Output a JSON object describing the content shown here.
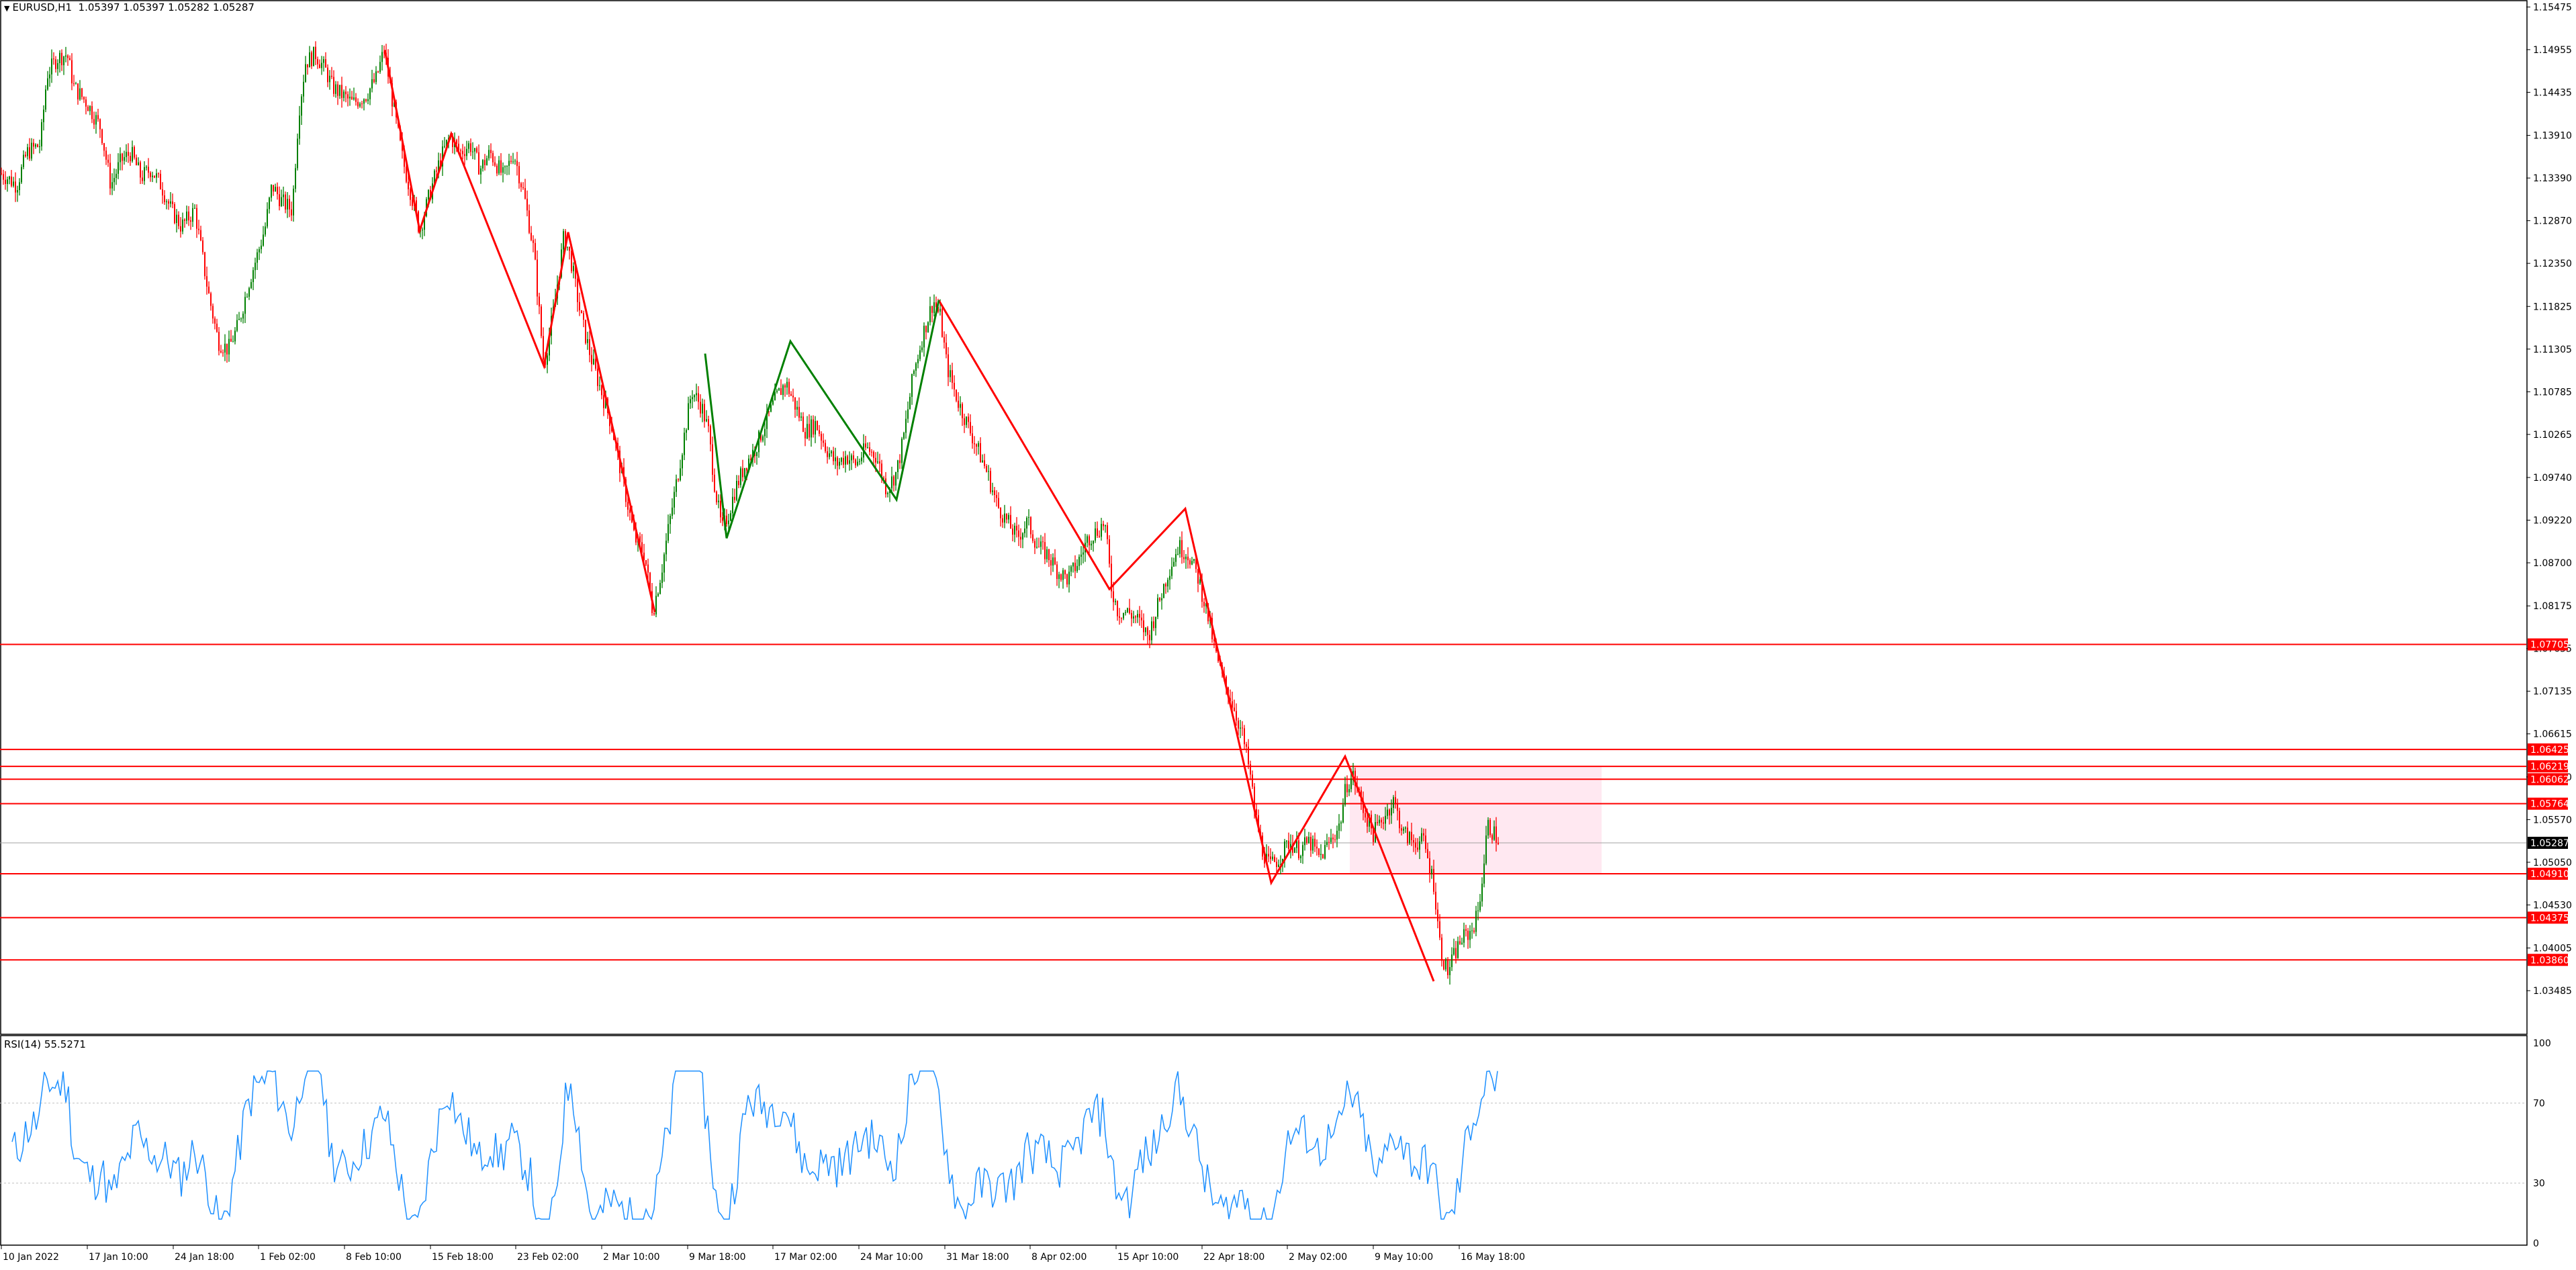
{
  "header": {
    "symbol": "EURUSD,H1",
    "ohlc": "1.05397 1.05397 1.05282 1.05287",
    "menu_icon": "triangle-down-icon"
  },
  "rsi": {
    "label": "RSI(14) 55.5271",
    "levels": [
      100,
      70,
      30,
      0
    ],
    "level_labels": [
      "100",
      "70",
      "30",
      "0"
    ],
    "color": "#1e90ff"
  },
  "colors": {
    "up_candle": "#008000",
    "down_candle": "#ff0000",
    "zigzag_red": "#ff0000",
    "zigzag_green": "#008000",
    "level_line": "#ff0000",
    "zone_fill": "#ffe4ee",
    "price_tag_bg": "#ff0000",
    "current_tag_bg": "#000000"
  },
  "chart_data": {
    "type": "candlestick",
    "symbol": "EURUSD",
    "timeframe": "H1",
    "ylim": [
      1.0324,
      1.1547
    ],
    "y_ticks": [
      "1.15475",
      "1.14955",
      "1.14435",
      "1.13910",
      "1.13390",
      "1.12870",
      "1.12350",
      "1.11825",
      "1.11305",
      "1.10785",
      "1.10265",
      "1.09740",
      "1.09220",
      "1.08700",
      "1.08175",
      "1.07655",
      "1.07135",
      "1.06615",
      "1.06090",
      "1.05570",
      "1.05050",
      "1.04530",
      "1.04005",
      "1.03485"
    ],
    "x_ticks": [
      "10 Jan 2022",
      "17 Jan 10:00",
      "24 Jan 18:00",
      "1 Feb 02:00",
      "8 Feb 10:00",
      "15 Feb 18:00",
      "23 Feb 02:00",
      "2 Mar 10:00",
      "9 Mar 18:00",
      "17 Mar 02:00",
      "24 Mar 10:00",
      "31 Mar 18:00",
      "8 Apr 02:00",
      "15 Apr 10:00",
      "22 Apr 18:00",
      "2 May 02:00",
      "9 May 10:00",
      "16 May 18:00"
    ],
    "price_path": [
      [
        0,
        1.1345
      ],
      [
        10,
        1.134
      ],
      [
        25,
        1.133
      ],
      [
        40,
        1.137
      ],
      [
        60,
        1.138
      ],
      [
        70,
        1.1465
      ],
      [
        85,
        1.1485
      ],
      [
        100,
        1.149
      ],
      [
        110,
        1.145
      ],
      [
        130,
        1.143
      ],
      [
        150,
        1.14
      ],
      [
        165,
        1.133
      ],
      [
        180,
        1.136
      ],
      [
        195,
        1.137
      ],
      [
        210,
        1.134
      ],
      [
        225,
        1.135
      ],
      [
        240,
        1.133
      ],
      [
        255,
        1.13
      ],
      [
        270,
        1.128
      ],
      [
        290,
        1.13
      ],
      [
        310,
        1.12
      ],
      [
        325,
        1.114
      ],
      [
        340,
        1.113
      ],
      [
        355,
        1.116
      ],
      [
        370,
        1.121
      ],
      [
        385,
        1.125
      ],
      [
        395,
        1.128
      ],
      [
        405,
        1.133
      ],
      [
        420,
        1.131
      ],
      [
        435,
        1.13
      ],
      [
        445,
        1.142
      ],
      [
        455,
        1.148
      ],
      [
        470,
        1.149
      ],
      [
        485,
        1.147
      ],
      [
        495,
        1.145
      ],
      [
        510,
        1.144
      ],
      [
        525,
        1.143
      ],
      [
        545,
        1.144
      ],
      [
        560,
        1.146
      ],
      [
        572,
        1.1495
      ],
      [
        585,
        1.143
      ],
      [
        600,
        1.136
      ],
      [
        615,
        1.131
      ],
      [
        625,
        1.1275
      ],
      [
        640,
        1.132
      ],
      [
        655,
        1.136
      ],
      [
        670,
        1.139
      ],
      [
        685,
        1.137
      ],
      [
        700,
        1.138
      ],
      [
        715,
        1.135
      ],
      [
        730,
        1.137
      ],
      [
        750,
        1.134
      ],
      [
        765,
        1.137
      ],
      [
        780,
        1.132
      ],
      [
        795,
        1.125
      ],
      [
        810,
        1.111
      ],
      [
        825,
        1.118
      ],
      [
        840,
        1.127
      ],
      [
        850,
        1.124
      ],
      [
        865,
        1.117
      ],
      [
        880,
        1.112
      ],
      [
        895,
        1.108
      ],
      [
        910,
        1.104
      ],
      [
        925,
        1.098
      ],
      [
        945,
        1.09
      ],
      [
        960,
        1.088
      ],
      [
        972,
        1.081
      ],
      [
        985,
        1.086
      ],
      [
        995,
        1.091
      ],
      [
        1010,
        1.098
      ],
      [
        1020,
        1.103
      ],
      [
        1030,
        1.108
      ],
      [
        1045,
        1.106
      ],
      [
        1055,
        1.103
      ],
      [
        1065,
        1.096
      ],
      [
        1075,
        1.091
      ],
      [
        1085,
        1.093
      ],
      [
        1095,
        1.096
      ],
      [
        1110,
        1.099
      ],
      [
        1125,
        1.101
      ],
      [
        1140,
        1.104
      ],
      [
        1155,
        1.107
      ],
      [
        1170,
        1.109
      ],
      [
        1185,
        1.106
      ],
      [
        1200,
        1.103
      ],
      [
        1215,
        1.104
      ],
      [
        1230,
        1.101
      ],
      [
        1245,
        1.099
      ],
      [
        1260,
        1.1
      ],
      [
        1275,
        1.099
      ],
      [
        1290,
        1.101
      ],
      [
        1305,
        1.1
      ],
      [
        1320,
        1.096
      ],
      [
        1335,
        1.098
      ],
      [
        1345,
        1.102
      ],
      [
        1360,
        1.11
      ],
      [
        1375,
        1.115
      ],
      [
        1390,
        1.119
      ],
      [
        1400,
        1.117
      ],
      [
        1410,
        1.111
      ],
      [
        1425,
        1.107
      ],
      [
        1440,
        1.104
      ],
      [
        1455,
        1.101
      ],
      [
        1470,
        1.098
      ],
      [
        1485,
        1.094
      ],
      [
        1500,
        1.092
      ],
      [
        1515,
        1.09
      ],
      [
        1530,
        1.092
      ],
      [
        1545,
        1.089
      ],
      [
        1560,
        1.088
      ],
      [
        1575,
        1.086
      ],
      [
        1590,
        1.085
      ],
      [
        1605,
        1.087
      ],
      [
        1620,
        1.09
      ],
      [
        1635,
        1.091
      ],
      [
        1645,
        1.092
      ],
      [
        1655,
        1.084
      ],
      [
        1665,
        1.081
      ],
      [
        1680,
        1.081
      ],
      [
        1695,
        1.08
      ],
      [
        1710,
        1.078
      ],
      [
        1725,
        1.082
      ],
      [
        1740,
        1.086
      ],
      [
        1755,
        1.089
      ],
      [
        1770,
        1.088
      ],
      [
        1785,
        1.085
      ],
      [
        1800,
        1.08
      ],
      [
        1810,
        1.076
      ],
      [
        1820,
        1.073
      ],
      [
        1835,
        1.07
      ],
      [
        1850,
        1.066
      ],
      [
        1860,
        1.062
      ],
      [
        1870,
        1.056
      ],
      [
        1880,
        1.052
      ],
      [
        1890,
        1.05
      ],
      [
        1905,
        1.051
      ],
      [
        1920,
        1.053
      ],
      [
        1935,
        1.052
      ],
      [
        1950,
        1.053
      ],
      [
        1965,
        1.051
      ],
      [
        1980,
        1.053
      ],
      [
        1995,
        1.055
      ],
      [
        2005,
        1.06
      ],
      [
        2015,
        1.061
      ],
      [
        2030,
        1.057
      ],
      [
        2045,
        1.054
      ],
      [
        2060,
        1.056
      ],
      [
        2075,
        1.058
      ],
      [
        2090,
        1.054
      ],
      [
        2105,
        1.053
      ],
      [
        2120,
        1.053
      ],
      [
        2135,
        1.048
      ],
      [
        2145,
        1.04
      ],
      [
        2155,
        1.037
      ],
      [
        2165,
        1.039
      ],
      [
        2175,
        1.041
      ],
      [
        2190,
        1.042
      ],
      [
        2200,
        1.044
      ],
      [
        2208,
        1.049
      ],
      [
        2215,
        1.055
      ],
      [
        2225,
        1.054
      ],
      [
        2232,
        1.053
      ]
    ],
    "zigzag_red": [
      [
        [
          573,
          1.1495
        ],
        [
          625,
          1.1275
        ],
        [
          672,
          1.1393
        ],
        [
          810,
          1.111
        ],
        [
          846,
          1.1273
        ],
        [
          975,
          1.081
        ]
      ],
      [
        [
          1398,
          1.119
        ],
        [
          1652,
          1.0838
        ],
        [
          1765,
          1.0936
        ],
        [
          1893,
          1.048
        ],
        [
          2003,
          1.0634
        ],
        [
          2135,
          1.036
        ]
      ]
    ],
    "zigzag_green": [
      [
        [
          1082,
          1.09
        ],
        [
          1050,
          1.1125
        ],
        [
          1082,
          1.09
        ],
        [
          1177,
          1.114
        ],
        [
          1335,
          1.0947
        ],
        [
          1398,
          1.119
        ]
      ]
    ],
    "levels": [
      {
        "price": 1.07705,
        "label": "1.07705"
      },
      {
        "price": 1.06425,
        "label": "1.06425"
      },
      {
        "price": 1.06219,
        "label": "1.06219"
      },
      {
        "price": 1.06062,
        "label": "1.06062"
      },
      {
        "price": 1.05764,
        "label": "1.05764"
      },
      {
        "price": 1.0491,
        "label": "1.04910"
      },
      {
        "price": 1.04375,
        "label": "1.04375"
      },
      {
        "price": 1.0386,
        "label": "1.03860"
      }
    ],
    "zone": {
      "price_top": 1.0622,
      "price_bottom": 1.0491
    },
    "current_price": {
      "price": 1.05287,
      "label": "1.05287"
    }
  }
}
